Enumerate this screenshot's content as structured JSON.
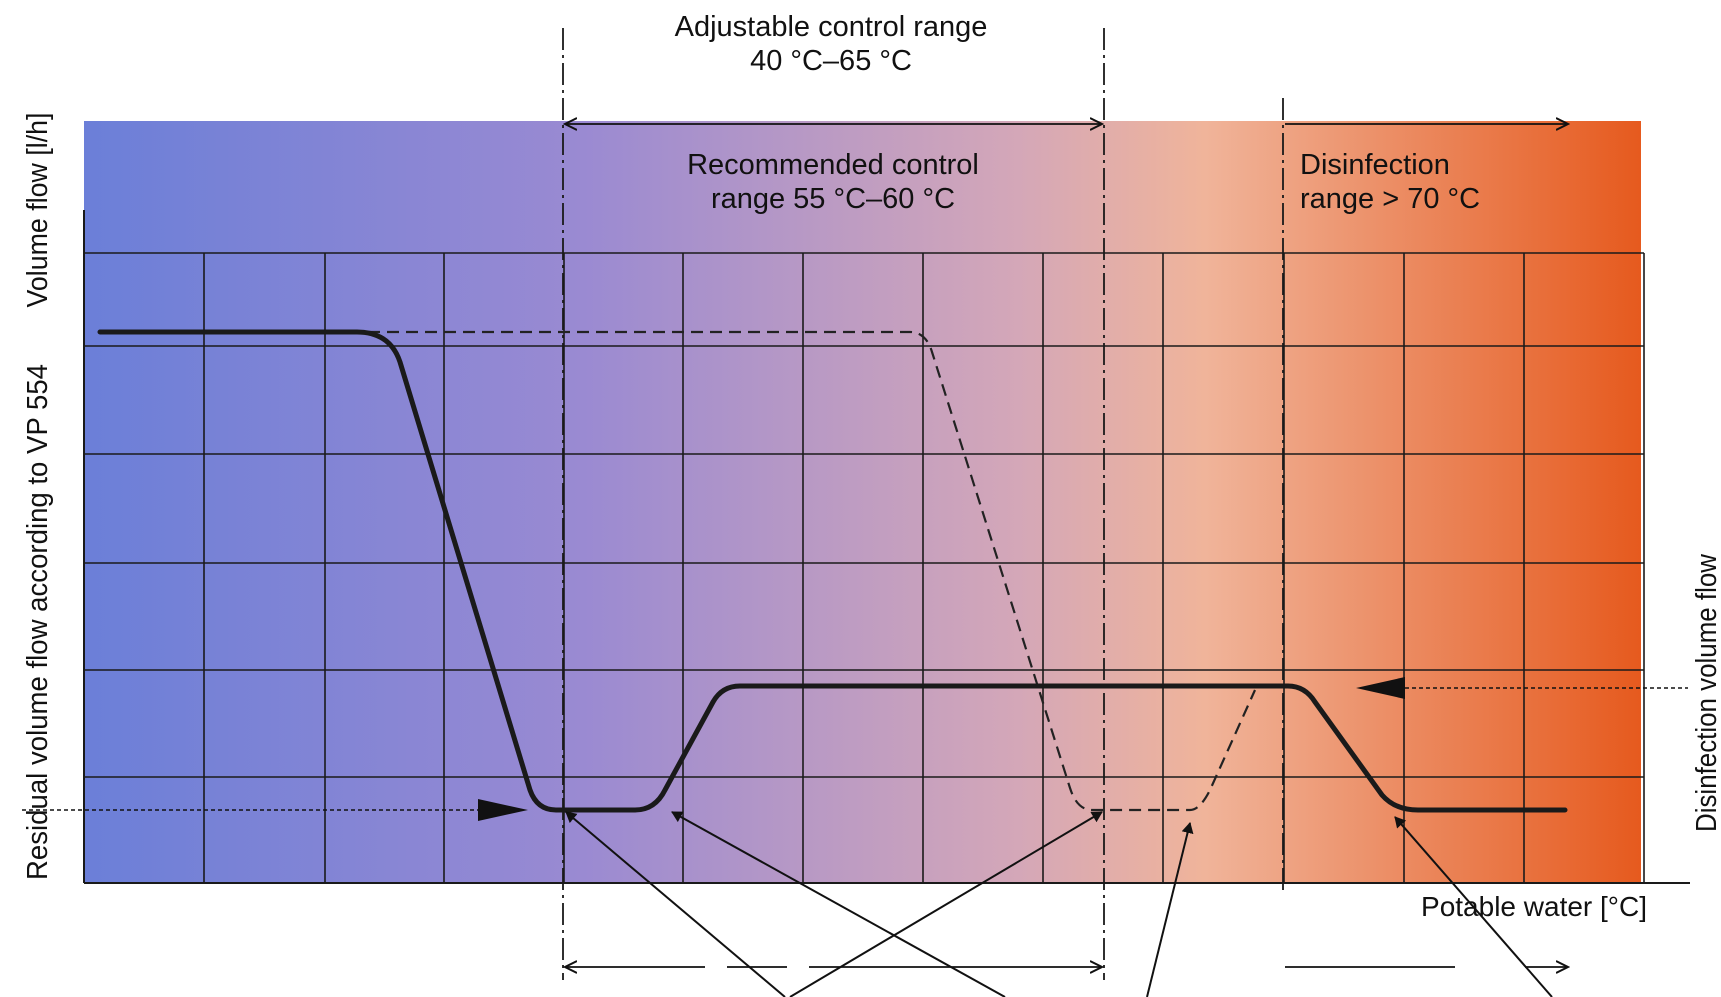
{
  "labels": {
    "adjustable_line1": "Adjustable control range",
    "adjustable_line2": "40 °C–65 °C",
    "recommended_line1": "Recommended control",
    "recommended_line2": "range 55 °C–60 °C",
    "disinfection_line1": "Disinfection",
    "disinfection_line2": "range > 70 °C",
    "y_axis_primary": "Volume flow [l/h]",
    "y_axis_secondary": "Residual volume flow according to VP 554",
    "right_axis": "Disinfection volume flow",
    "x_axis": "Potable water [°C]"
  },
  "colors": {
    "gradient_start": "#6b7fd8",
    "gradient_mid1": "#9a8ad2",
    "gradient_mid2": "#d4a7b8",
    "gradient_mid3": "#f0b49a",
    "gradient_end": "#e65a1e",
    "curve": "#1a1a1a"
  }
}
